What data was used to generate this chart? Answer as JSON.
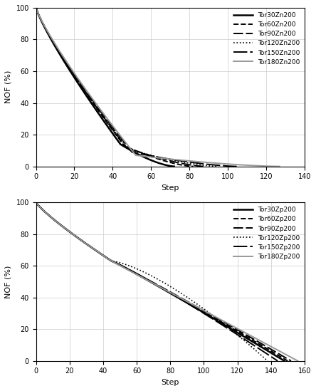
{
  "top_chart": {
    "ylabel": "NOF (%)",
    "xlabel": "Step",
    "xlim": [
      0,
      140
    ],
    "ylim": [
      0,
      100
    ],
    "xticks": [
      0,
      20,
      40,
      60,
      80,
      100,
      120,
      140
    ],
    "yticks": [
      0,
      20,
      40,
      60,
      80,
      100
    ],
    "series": [
      {
        "label": "Tor30Zn200",
        "color": "#000000",
        "lw": 1.8,
        "ls": "-",
        "end_step": 72,
        "knee_step": 44,
        "knee_val": 14
      },
      {
        "label": "Tor60Zn200",
        "color": "#000000",
        "lw": 1.4,
        "ls": "--",
        "end_step": 82,
        "knee_step": 46,
        "knee_val": 13
      },
      {
        "label": "Tor90Zn200",
        "color": "#000000",
        "lw": 1.4,
        "ls": "-",
        "end_step": 88,
        "knee_step": 47,
        "knee_val": 12
      },
      {
        "label": "Tor120Zn200",
        "color": "#000000",
        "lw": 1.2,
        "ls": ":",
        "end_step": 95,
        "knee_step": 48,
        "knee_val": 11
      },
      {
        "label": "Tor150Zn200",
        "color": "#000000",
        "lw": 1.4,
        "ls": "-",
        "end_step": 105,
        "knee_step": 50,
        "knee_val": 9
      },
      {
        "label": "Tor180Zn200",
        "color": "#999999",
        "lw": 1.4,
        "ls": "-",
        "end_step": 127,
        "knee_step": 52,
        "knee_val": 7
      }
    ]
  },
  "bottom_chart": {
    "ylabel": "NOF (%)",
    "xlabel": "Step",
    "xlim": [
      0,
      160
    ],
    "ylim": [
      0,
      100
    ],
    "xticks": [
      0,
      20,
      40,
      60,
      80,
      100,
      120,
      140,
      160
    ],
    "yticks": [
      0,
      20,
      40,
      60,
      80,
      100
    ],
    "series": [
      {
        "label": "Tor30Zp200",
        "color": "#000000",
        "lw": 1.8,
        "ls": "-",
        "split_step": 45,
        "split_val": 63,
        "end_step": 148,
        "curve_power": 1.05
      },
      {
        "label": "Tor60Zp200",
        "color": "#000000",
        "lw": 1.4,
        "ls": "--",
        "split_step": 45,
        "split_val": 63,
        "end_step": 150,
        "curve_power": 1.05
      },
      {
        "label": "Tor90Zp200",
        "color": "#000000",
        "lw": 1.4,
        "ls": "-",
        "split_step": 45,
        "split_val": 63,
        "end_step": 152,
        "curve_power": 1.05
      },
      {
        "label": "Tor120Zp200",
        "color": "#000000",
        "lw": 1.2,
        "ls": ":",
        "split_step": 45,
        "split_val": 63,
        "end_step": 138,
        "curve_power": 1.4
      },
      {
        "label": "Tor150Zp200",
        "color": "#000000",
        "lw": 1.4,
        "ls": "-",
        "split_step": 45,
        "split_val": 63,
        "end_step": 144,
        "curve_power": 1.1
      },
      {
        "label": "Tor180Zp200",
        "color": "#999999",
        "lw": 1.4,
        "ls": "-",
        "split_step": 45,
        "split_val": 63,
        "end_step": 156,
        "curve_power": 1.0
      }
    ]
  },
  "bg_color": "#ffffff",
  "grid_color": "#cccccc",
  "legend_fontsize": 6.5,
  "axis_fontsize": 8,
  "tick_fontsize": 7
}
